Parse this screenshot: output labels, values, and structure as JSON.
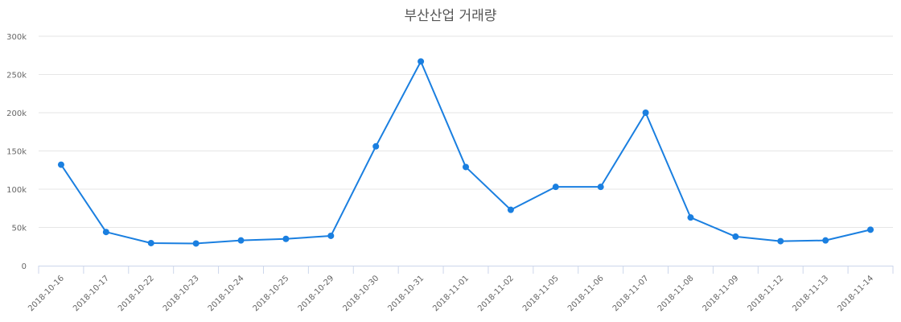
{
  "chart_data": {
    "type": "line",
    "title": "부산산업 거래량",
    "xlabel": "",
    "ylabel": "",
    "ylim": [
      0,
      300000
    ],
    "yticks": [
      "0",
      "50k",
      "100k",
      "150k",
      "200k",
      "250k",
      "300k"
    ],
    "grid": true,
    "legend": null,
    "line_color": "#1a7fe0",
    "categories": [
      "2018-10-16",
      "2018-10-17",
      "2018-10-22",
      "2018-10-23",
      "2018-10-24",
      "2018-10-25",
      "2018-10-29",
      "2018-10-30",
      "2018-10-31",
      "2018-11-01",
      "2018-11-02",
      "2018-11-05",
      "2018-11-06",
      "2018-11-07",
      "2018-11-08",
      "2018-11-09",
      "2018-11-12",
      "2018-11-13",
      "2018-11-14"
    ],
    "series": [
      {
        "name": "거래량",
        "values": [
          132000,
          44000,
          29500,
          29000,
          33000,
          35000,
          39000,
          156000,
          267000,
          129000,
          73000,
          103000,
          103000,
          200000,
          63000,
          38000,
          32000,
          33000,
          47000
        ]
      }
    ]
  }
}
